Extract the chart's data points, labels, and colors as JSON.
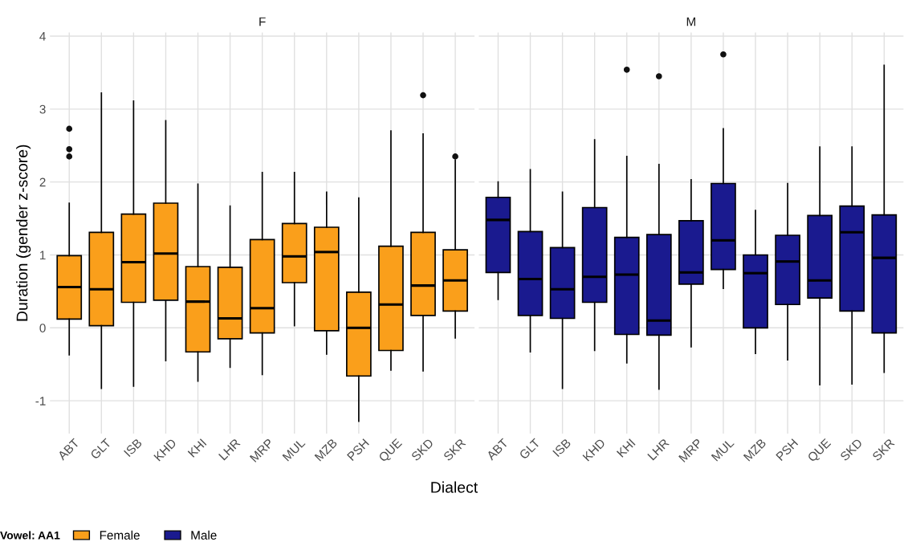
{
  "chart_data": [
    {
      "type": "box",
      "title": "F",
      "xlabel": "Dialect",
      "ylabel": "Duration (gender z-score)",
      "legend_title": "Vowel: AA1",
      "legend": "bottom",
      "grid": true,
      "categories": [
        "ABT",
        "GLT",
        "ISB",
        "KHD",
        "KHI",
        "LHR",
        "MRP",
        "MUL",
        "MZB",
        "PSH",
        "QUE",
        "SKD",
        "SKR"
      ],
      "ylim": [
        -1.45,
        4.05
      ],
      "yticks": [
        -1,
        0,
        1,
        2,
        3,
        4
      ],
      "series": [
        {
          "name": "Female",
          "color": "#fa9f1b",
          "boxes": [
            {
              "low": -0.37,
              "q1": 0.12,
              "median": 0.56,
              "q3": 0.99,
              "high": 1.71,
              "outliers": [
                2.35,
                2.45,
                2.73
              ]
            },
            {
              "low": -0.83,
              "q1": 0.03,
              "median": 0.53,
              "q3": 1.31,
              "high": 3.22
            },
            {
              "low": -0.8,
              "q1": 0.35,
              "median": 0.9,
              "q3": 1.56,
              "high": 3.11
            },
            {
              "low": -0.45,
              "q1": 0.38,
              "median": 1.02,
              "q3": 1.71,
              "high": 2.84
            },
            {
              "low": -0.73,
              "q1": -0.33,
              "median": 0.36,
              "q3": 0.84,
              "high": 1.97
            },
            {
              "low": -0.54,
              "q1": -0.15,
              "median": 0.13,
              "q3": 0.83,
              "high": 1.67
            },
            {
              "low": -0.64,
              "q1": -0.07,
              "median": 0.27,
              "q3": 1.21,
              "high": 2.13
            },
            {
              "low": 0.03,
              "q1": 0.62,
              "median": 0.98,
              "q3": 1.43,
              "high": 2.13
            },
            {
              "low": -0.36,
              "q1": -0.04,
              "median": 1.04,
              "q3": 1.38,
              "high": 1.86
            },
            {
              "low": -1.28,
              "q1": -0.66,
              "median": 0.0,
              "q3": 0.49,
              "high": 1.78
            },
            {
              "low": -0.58,
              "q1": -0.31,
              "median": 0.32,
              "q3": 1.12,
              "high": 2.7
            },
            {
              "low": -0.59,
              "q1": 0.17,
              "median": 0.58,
              "q3": 1.31,
              "high": 2.66,
              "outliers": [
                3.19
              ]
            },
            {
              "low": -0.14,
              "q1": 0.23,
              "median": 0.65,
              "q3": 1.07,
              "high": 2.3,
              "outliers": [
                2.35
              ]
            }
          ]
        }
      ]
    },
    {
      "type": "box",
      "title": "M",
      "grid": true,
      "tick_labels": "x",
      "categories": [
        "ABT",
        "GLT",
        "ISB",
        "KHD",
        "KHI",
        "LHR",
        "MRP",
        "MUL",
        "MZB",
        "PSH",
        "QUE",
        "SKD",
        "SKR"
      ],
      "ylim": [
        -1.45,
        4.05
      ],
      "yticks": [
        -1,
        0,
        1,
        2,
        3,
        4
      ],
      "series": [
        {
          "name": "Male",
          "color": "#1a1a8f",
          "boxes": [
            {
              "low": 0.39,
              "q1": 0.76,
              "median": 1.48,
              "q3": 1.79,
              "high": 2.0
            },
            {
              "low": -0.33,
              "q1": 0.17,
              "median": 0.67,
              "q3": 1.32,
              "high": 2.17
            },
            {
              "low": -0.83,
              "q1": 0.13,
              "median": 0.53,
              "q3": 1.1,
              "high": 1.86
            },
            {
              "low": -0.31,
              "q1": 0.35,
              "median": 0.7,
              "q3": 1.65,
              "high": 2.58
            },
            {
              "low": -0.48,
              "q1": -0.09,
              "median": 0.73,
              "q3": 1.24,
              "high": 2.35,
              "outliers": [
                3.54
              ]
            },
            {
              "low": -0.84,
              "q1": -0.1,
              "median": 0.1,
              "q3": 1.28,
              "high": 2.24,
              "outliers": [
                3.45
              ]
            },
            {
              "low": -0.26,
              "q1": 0.6,
              "median": 0.76,
              "q3": 1.47,
              "high": 2.03
            },
            {
              "low": 0.54,
              "q1": 0.8,
              "median": 1.2,
              "q3": 1.98,
              "high": 2.73,
              "outliers": [
                3.75
              ]
            },
            {
              "low": -0.35,
              "q1": 0.0,
              "median": 0.75,
              "q3": 1.0,
              "high": 1.61
            },
            {
              "low": -0.44,
              "q1": 0.32,
              "median": 0.91,
              "q3": 1.27,
              "high": 1.98
            },
            {
              "low": -0.78,
              "q1": 0.41,
              "median": 0.65,
              "q3": 1.54,
              "high": 2.48
            },
            {
              "low": -0.77,
              "q1": 0.23,
              "median": 1.31,
              "q3": 1.67,
              "high": 2.48
            },
            {
              "low": -0.61,
              "q1": -0.07,
              "median": 0.96,
              "q3": 1.55,
              "high": 3.6
            }
          ]
        }
      ]
    }
  ]
}
